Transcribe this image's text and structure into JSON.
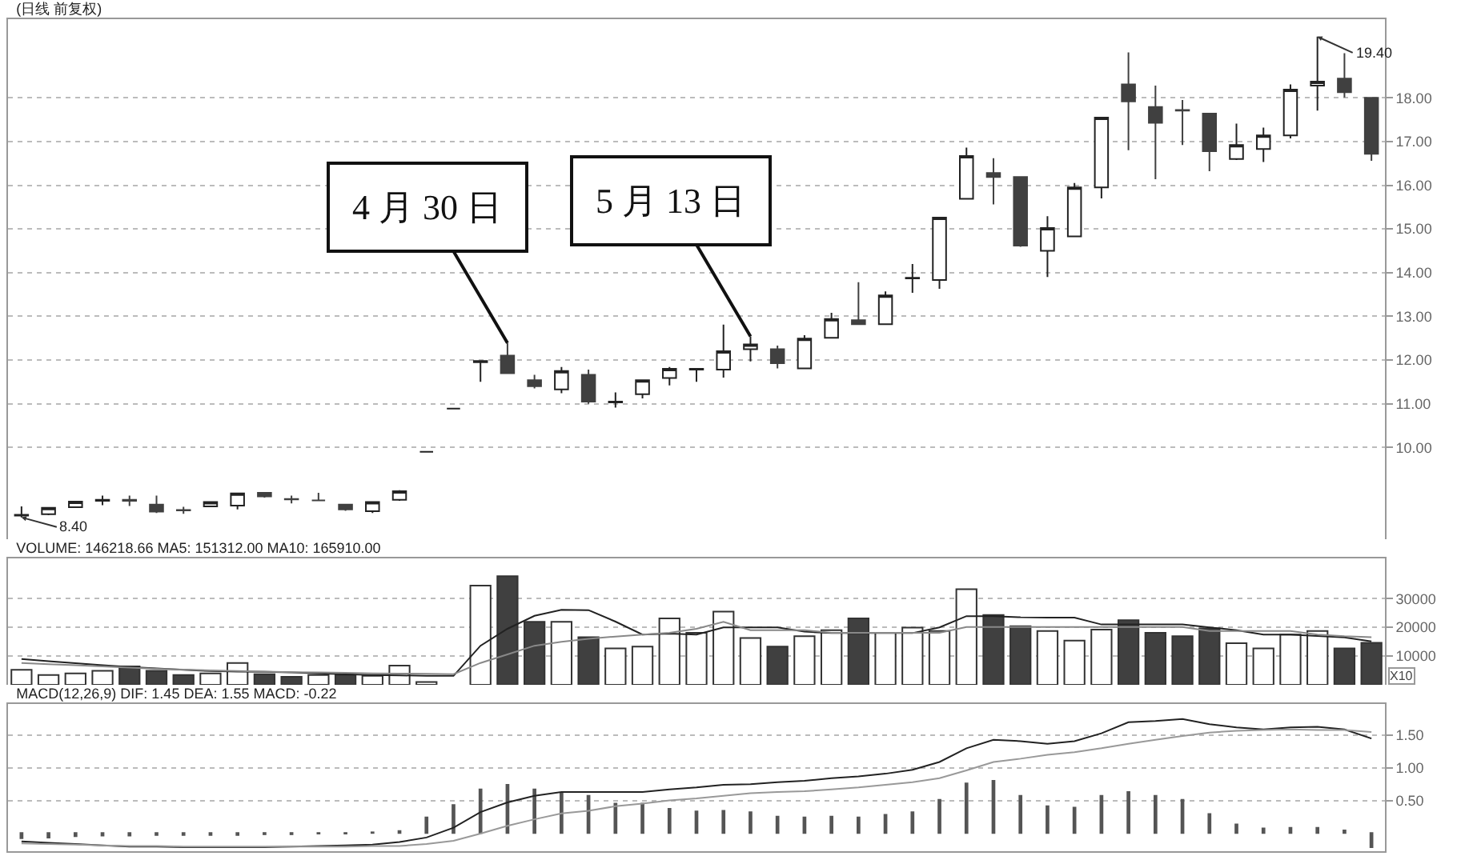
{
  "chart_data": [
    {
      "type": "candlestick",
      "title": "(日线 前复权)",
      "categories": [
        null,
        null,
        null,
        null,
        null,
        null,
        null,
        null,
        null,
        null,
        null,
        null,
        null,
        null,
        null,
        null,
        null,
        null,
        null,
        null,
        null,
        null,
        null,
        null,
        null,
        null,
        null,
        null,
        null,
        null,
        null,
        null,
        null,
        null,
        null,
        null,
        null,
        null,
        null,
        null,
        null,
        null,
        null,
        null,
        null,
        null,
        null,
        null,
        null,
        null,
        null
      ],
      "ohlc": [
        [
          8.44,
          8.65,
          8.4,
          8.46
        ],
        [
          8.47,
          8.62,
          8.45,
          8.62
        ],
        [
          8.63,
          8.78,
          8.62,
          8.76
        ],
        [
          8.78,
          8.9,
          8.68,
          8.8
        ],
        [
          8.8,
          8.9,
          8.66,
          8.78
        ],
        [
          8.69,
          8.9,
          8.5,
          8.53
        ],
        [
          8.57,
          8.64,
          8.48,
          8.56
        ],
        [
          8.65,
          8.77,
          8.63,
          8.75
        ],
        [
          8.67,
          8.96,
          8.58,
          8.95
        ],
        [
          8.96,
          8.98,
          8.85,
          8.88
        ],
        [
          8.82,
          8.9,
          8.72,
          8.81
        ],
        [
          8.79,
          8.96,
          8.78,
          8.79
        ],
        [
          8.69,
          8.71,
          8.55,
          8.58
        ],
        [
          8.54,
          8.76,
          8.5,
          8.75
        ],
        [
          8.8,
          9.02,
          8.78,
          9.0
        ],
        [
          9.9,
          9.9,
          9.9,
          9.9
        ],
        [
          10.89,
          10.89,
          10.89,
          10.89
        ],
        [
          11.95,
          11.98,
          11.5,
          11.98
        ],
        [
          12.1,
          12.39,
          11.7,
          11.7
        ],
        [
          11.54,
          11.66,
          11.35,
          11.4
        ],
        [
          11.33,
          11.84,
          11.24,
          11.75
        ],
        [
          11.66,
          11.78,
          11.0,
          11.05
        ],
        [
          11.03,
          11.26,
          10.91,
          11.05
        ],
        [
          11.22,
          11.55,
          11.12,
          11.54
        ],
        [
          11.59,
          11.84,
          11.42,
          11.8
        ],
        [
          11.78,
          11.82,
          11.5,
          11.8
        ],
        [
          11.78,
          12.81,
          11.6,
          12.2
        ],
        [
          12.25,
          12.54,
          11.97,
          12.36
        ],
        [
          12.25,
          12.33,
          11.81,
          11.93
        ],
        [
          11.81,
          12.57,
          11.8,
          12.49
        ],
        [
          12.51,
          13.08,
          12.49,
          12.94
        ],
        [
          12.91,
          13.78,
          12.82,
          12.82
        ],
        [
          12.82,
          13.57,
          12.8,
          13.48
        ],
        [
          13.87,
          14.2,
          13.54,
          13.88
        ],
        [
          13.83,
          15.26,
          13.63,
          15.26
        ],
        [
          15.69,
          16.86,
          15.69,
          16.67
        ],
        [
          16.28,
          16.62,
          15.56,
          16.19
        ],
        [
          16.19,
          16.19,
          14.59,
          14.62
        ],
        [
          14.5,
          15.29,
          13.9,
          15.02
        ],
        [
          14.83,
          16.05,
          14.83,
          15.95
        ],
        [
          15.95,
          17.55,
          15.7,
          17.55
        ],
        [
          18.31,
          19.04,
          16.8,
          17.92
        ],
        [
          17.79,
          18.28,
          16.14,
          17.43
        ],
        [
          17.72,
          17.95,
          16.92,
          17.71
        ],
        [
          17.64,
          17.64,
          16.32,
          16.78
        ],
        [
          16.6,
          17.41,
          16.58,
          16.92
        ],
        [
          16.83,
          17.32,
          16.53,
          17.14
        ],
        [
          17.14,
          18.31,
          17.07,
          18.19
        ],
        [
          18.28,
          19.4,
          17.71,
          18.37
        ],
        [
          18.44,
          19.02,
          18.01,
          18.13
        ],
        [
          18.0,
          18.0,
          16.56,
          16.72
        ]
      ],
      "ylim": [
        7.9,
        19.8
      ],
      "yticks": [
        {
          "value": 10,
          "label": "10.00"
        },
        {
          "value": 11,
          "label": "11.00"
        },
        {
          "value": 12,
          "label": "12.00"
        },
        {
          "value": 13,
          "label": "13.00"
        },
        {
          "value": 14,
          "label": "14.00"
        },
        {
          "value": 15,
          "label": "15.00"
        },
        {
          "value": 16,
          "label": "16.00"
        },
        {
          "value": 17,
          "label": "17.00"
        },
        {
          "value": 18,
          "label": "18.00"
        }
      ],
      "grid": "y",
      "annotations": [
        "4 月 30 日",
        "5 月 13 日",
        "8.40",
        "19.40"
      ]
    },
    {
      "type": "bar",
      "title": "VOLUME: 146218.66 MA5: 151312.00 MA10: 165910.00",
      "categories": [
        null,
        null,
        null,
        null,
        null,
        null,
        null,
        null,
        null,
        null,
        null,
        null,
        null,
        null,
        null,
        null,
        null,
        null,
        null,
        null,
        null,
        null,
        null,
        null,
        null,
        null,
        null,
        null,
        null,
        null,
        null,
        null,
        null,
        null,
        null,
        null,
        null,
        null,
        null,
        null,
        null,
        null,
        null,
        null,
        null,
        null,
        null,
        null,
        null,
        null,
        null
      ],
      "series": [
        {
          "values": [
            5200,
            3400,
            4000,
            4900,
            6400,
            4900,
            3400,
            4000,
            7600,
            3700,
            2800,
            3400,
            3400,
            3100,
            6700,
            1000,
            null,
            34500,
            37800,
            21900,
            21900,
            16600,
            12700,
            13300,
            23100,
            18100,
            25500,
            16300,
            13300,
            16900,
            19000,
            23100,
            18100,
            19900,
            18700,
            33300,
            24300,
            20400,
            18700,
            15400,
            19200,
            22500,
            18100,
            16900,
            19600,
            14500,
            12700,
            17500,
            18700,
            12700,
            14600
          ],
          "colors": [
            "#ffffff",
            "#ffffff",
            "#ffffff",
            "#ffffff",
            "#404040",
            "#404040",
            "#404040",
            "#ffffff",
            "#ffffff",
            "#404040",
            "#404040",
            "#ffffff",
            "#404040",
            "#ffffff",
            "#ffffff",
            "#ffffff",
            "#ffffff",
            "#ffffff",
            "#404040",
            "#404040",
            "#ffffff",
            "#404040",
            "#ffffff",
            "#ffffff",
            "#ffffff",
            "#ffffff",
            "#ffffff",
            "#ffffff",
            "#404040",
            "#ffffff",
            "#ffffff",
            "#404040",
            "#ffffff",
            "#ffffff",
            "#ffffff",
            "#ffffff",
            "#404040",
            "#404040",
            "#ffffff",
            "#ffffff",
            "#ffffff",
            "#404040",
            "#404040",
            "#404040",
            "#404040",
            "#ffffff",
            "#ffffff",
            "#ffffff",
            "#ffffff",
            "#404040",
            "#404040"
          ]
        },
        {
          "type": "line",
          "color": "#222222",
          "values": [
            9000,
            8200,
            7500,
            6800,
            6200,
            5700,
            5200,
            4800,
            4600,
            4500,
            4300,
            4000,
            3700,
            3400,
            3300,
            3100,
            3100,
            13600,
            19500,
            24000,
            26100,
            26000,
            22000,
            17500,
            17800,
            17500,
            20000,
            20000,
            20000,
            18500,
            18000,
            18000,
            18000,
            18000,
            20000,
            23900,
            23900,
            23500,
            23400,
            23400,
            21000,
            21000,
            21000,
            21000,
            20000,
            19000,
            17500,
            17500,
            17000,
            16500,
            15100
          ]
        },
        {
          "type": "line",
          "color": "#888888",
          "values": [
            7600,
            7200,
            6800,
            6400,
            6000,
            5600,
            5300,
            5000,
            4800,
            4600,
            4400,
            4300,
            4200,
            4000,
            3900,
            3800,
            3700,
            7600,
            10600,
            13600,
            15000,
            16000,
            16800,
            17500,
            18100,
            19500,
            21900,
            19000,
            19000,
            19000,
            18100,
            18100,
            18100,
            18100,
            18100,
            20100,
            20100,
            20100,
            20100,
            20100,
            20100,
            20100,
            20100,
            20100,
            18700,
            18700,
            18700,
            18700,
            17500,
            16900,
            16600
          ]
        }
      ],
      "ylim": [
        0,
        44000
      ],
      "yticks": [
        10000,
        20000,
        30000
      ],
      "grid": "y",
      "annotations": [
        "X10"
      ]
    },
    {
      "type": "line",
      "title": "MACD(12,26,9) DIF: 1.45 DEA: 1.55 MACD: -0.22",
      "categories": [
        null,
        null,
        null,
        null,
        null,
        null,
        null,
        null,
        null,
        null,
        null,
        null,
        null,
        null,
        null,
        null,
        null,
        null,
        null,
        null,
        null,
        null,
        null,
        null,
        null,
        null,
        null,
        null,
        null,
        null,
        null,
        null,
        null,
        null,
        null,
        null,
        null,
        null,
        null,
        null,
        null,
        null,
        null,
        null,
        null,
        null,
        null,
        null,
        null,
        null,
        null
      ],
      "series": [
        {
          "color": "#222222",
          "values": [
            -0.13,
            -0.15,
            -0.17,
            -0.19,
            -0.21,
            -0.21,
            -0.22,
            -0.22,
            -0.22,
            -0.22,
            -0.21,
            -0.2,
            -0.19,
            -0.18,
            -0.14,
            -0.07,
            0.08,
            0.32,
            0.47,
            0.57,
            0.63,
            0.63,
            0.63,
            0.63,
            0.67,
            0.7,
            0.74,
            0.75,
            0.78,
            0.8,
            0.84,
            0.87,
            0.91,
            0.97,
            1.09,
            1.3,
            1.43,
            1.41,
            1.37,
            1.41,
            1.53,
            1.7,
            1.72,
            1.75,
            1.67,
            1.62,
            1.59,
            1.62,
            1.63,
            1.59,
            1.45
          ]
        },
        {
          "color": "#999999",
          "values": [
            -0.16,
            -0.17,
            -0.18,
            -0.19,
            -0.2,
            -0.2,
            -0.21,
            -0.21,
            -0.21,
            -0.21,
            -0.21,
            -0.21,
            -0.21,
            -0.2,
            -0.2,
            -0.17,
            -0.12,
            -0.01,
            0.11,
            0.21,
            0.3,
            0.34,
            0.41,
            0.45,
            0.5,
            0.53,
            0.57,
            0.61,
            0.63,
            0.64,
            0.67,
            0.7,
            0.74,
            0.78,
            0.84,
            0.96,
            1.09,
            1.14,
            1.2,
            1.24,
            1.3,
            1.37,
            1.43,
            1.49,
            1.54,
            1.57,
            1.58,
            1.59,
            1.58,
            1.58,
            1.55
          ]
        },
        {
          "type": "bar",
          "color": "#555555",
          "values": [
            -0.08,
            -0.07,
            -0.05,
            -0.04,
            -0.04,
            -0.03,
            -0.03,
            -0.03,
            -0.03,
            -0.02,
            -0.02,
            -0.01,
            -0.01,
            0.01,
            0.03,
            0.24,
            0.43,
            0.67,
            0.74,
            0.67,
            0.61,
            0.57,
            0.45,
            0.45,
            0.37,
            0.33,
            0.34,
            0.32,
            0.25,
            0.24,
            0.25,
            0.24,
            0.28,
            0.32,
            0.51,
            0.76,
            0.8,
            0.57,
            0.41,
            0.39,
            0.57,
            0.63,
            0.57,
            0.51,
            0.29,
            0.13,
            0.07,
            0.08,
            0.08,
            0.04,
            -0.22
          ]
        }
      ],
      "ylim": [
        -0.28,
        1.98
      ],
      "yticks": [
        {
          "value": 0.5,
          "label": "0.50"
        },
        {
          "value": 1,
          "label": "1.00"
        },
        {
          "value": 1.5,
          "label": "1.50"
        }
      ],
      "grid": "y"
    }
  ]
}
